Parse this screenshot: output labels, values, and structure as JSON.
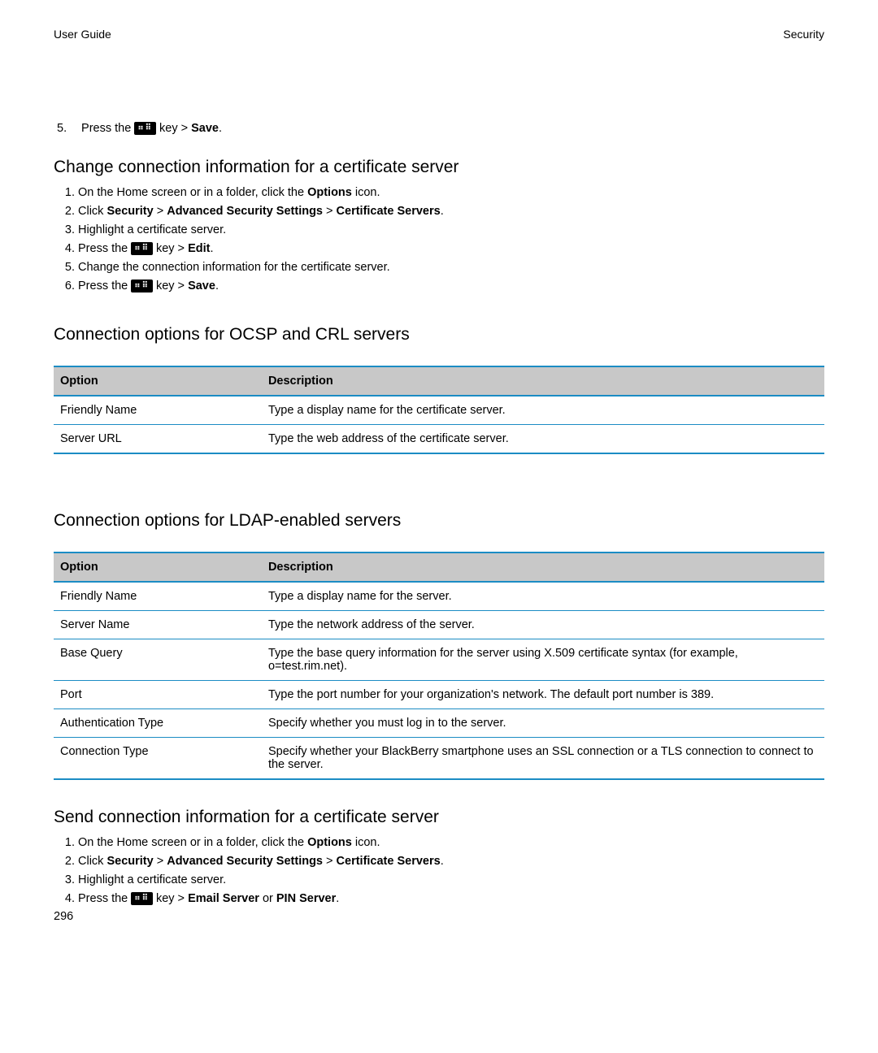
{
  "header": {
    "left": "User Guide",
    "right": "Security"
  },
  "topStep": {
    "number": "5.",
    "prefix": "Press the ",
    "keyGlyph": "⣿",
    "keyText": " key > ",
    "action": "Save",
    "suffix": "."
  },
  "sections": [
    {
      "heading": "Change connection information for a certificate server",
      "steps": [
        {
          "parts": [
            "On the Home screen or in a folder, click the ",
            {
              "b": "Options"
            },
            " icon."
          ]
        },
        {
          "parts": [
            "Click ",
            {
              "b": "Security"
            },
            " > ",
            {
              "b": "Advanced Security Settings"
            },
            " > ",
            {
              "b": "Certificate Servers"
            },
            "."
          ]
        },
        {
          "parts": [
            "Highlight a certificate server."
          ]
        },
        {
          "parts": [
            "Press the ",
            {
              "key": true
            },
            " key > ",
            {
              "b": "Edit"
            },
            "."
          ]
        },
        {
          "parts": [
            "Change the connection information for the certificate server."
          ]
        },
        {
          "parts": [
            "Press the ",
            {
              "key": true
            },
            " key > ",
            {
              "b": "Save"
            },
            "."
          ]
        }
      ]
    }
  ],
  "table1": {
    "heading": "Connection options for OCSP and CRL servers",
    "columns": [
      "Option",
      "Description"
    ],
    "rows": [
      [
        "Friendly Name",
        "Type a display name for the certificate server."
      ],
      [
        "Server URL",
        "Type the web address of the certificate server."
      ]
    ]
  },
  "table2": {
    "heading": "Connection options for LDAP-enabled servers",
    "columns": [
      "Option",
      "Description"
    ],
    "rows": [
      [
        "Friendly Name",
        "Type a display name for the server."
      ],
      [
        "Server Name",
        "Type the network address of the server."
      ],
      [
        "Base Query",
        "Type the base query information for the server using X.509 certificate syntax (for example, o=test.rim.net)."
      ],
      [
        "Port",
        "Type the port number for your organization's network. The default port number is 389."
      ],
      [
        "Authentication Type",
        "Specify whether you must log in to the server."
      ],
      [
        "Connection Type",
        "Specify whether your BlackBerry smartphone uses an SSL connection or a TLS connection to connect to the server."
      ]
    ]
  },
  "section3": {
    "heading": "Send connection information for a certificate server",
    "steps": [
      {
        "parts": [
          "On the Home screen or in a folder, click the ",
          {
            "b": "Options"
          },
          " icon."
        ]
      },
      {
        "parts": [
          "Click ",
          {
            "b": "Security"
          },
          " > ",
          {
            "b": "Advanced Security Settings"
          },
          " > ",
          {
            "b": "Certificate Servers"
          },
          "."
        ]
      },
      {
        "parts": [
          "Highlight a certificate server."
        ]
      },
      {
        "parts": [
          "Press the ",
          {
            "key": true
          },
          " key > ",
          {
            "b": "Email Server"
          },
          " or ",
          {
            "b": "PIN Server"
          },
          "."
        ]
      }
    ]
  },
  "pageNumber": "296",
  "colors": {
    "border": "#1b8cc4",
    "headerBg": "#c8c8c8"
  }
}
